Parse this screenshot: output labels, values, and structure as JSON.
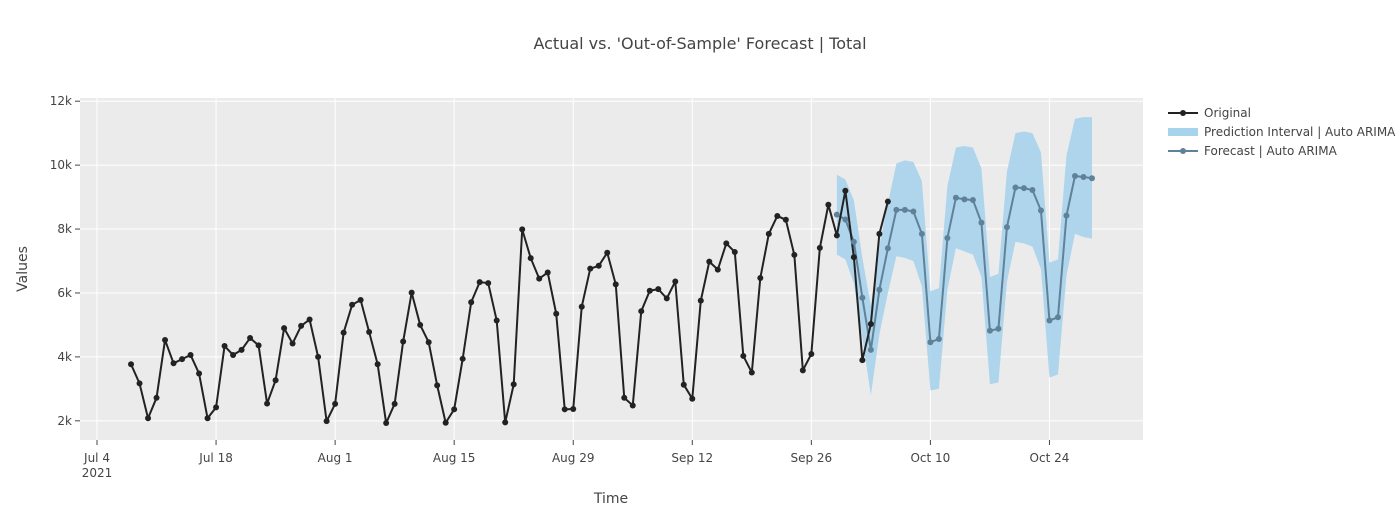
{
  "chart_data": {
    "type": "line",
    "title": "Actual vs. 'Out-of-Sample' Forecast | Total",
    "xlabel": "Time",
    "ylabel": "Values",
    "x_range": [
      "2021-07-02",
      "2021-11-04"
    ],
    "ylim": [
      1400,
      12100
    ],
    "x_ticks": [
      {
        "date": "2021-07-04",
        "label": "Jul 4",
        "sublabel": "2021"
      },
      {
        "date": "2021-07-18",
        "label": "Jul 18"
      },
      {
        "date": "2021-08-01",
        "label": "Aug 1"
      },
      {
        "date": "2021-08-15",
        "label": "Aug 15"
      },
      {
        "date": "2021-08-29",
        "label": "Aug 29"
      },
      {
        "date": "2021-09-12",
        "label": "Sep 12"
      },
      {
        "date": "2021-09-26",
        "label": "Sep 26"
      },
      {
        "date": "2021-10-10",
        "label": "Oct 10"
      },
      {
        "date": "2021-10-24",
        "label": "Oct 24"
      }
    ],
    "y_ticks": [
      {
        "value": 2000,
        "label": "2k"
      },
      {
        "value": 4000,
        "label": "4k"
      },
      {
        "value": 6000,
        "label": "6k"
      },
      {
        "value": 8000,
        "label": "8k"
      },
      {
        "value": 10000,
        "label": "10k"
      },
      {
        "value": 12000,
        "label": "12k"
      }
    ],
    "grid": true,
    "legend_position": "top-right",
    "colors": {
      "plot_bg": "#ebebeb",
      "grid": "#ffffff",
      "original": "#222222",
      "interval": "#a8d3ec",
      "forecast": "#5f8299"
    },
    "legend": [
      {
        "key": "original",
        "name": "Original"
      },
      {
        "key": "interval",
        "name": "Prediction Interval | Auto ARIMA"
      },
      {
        "key": "forecast",
        "name": "Forecast | Auto ARIMA"
      }
    ],
    "series": [
      {
        "key": "original",
        "name": "Original",
        "start": "2021-07-08",
        "values": [
          3770,
          3170,
          2080,
          2720,
          4530,
          3800,
          3930,
          4060,
          3480,
          2080,
          2420,
          4340,
          4060,
          4220,
          4590,
          4360,
          2540,
          3270,
          4900,
          4420,
          4970,
          5170,
          4000,
          1990,
          2530,
          4760,
          5630,
          5780,
          4780,
          3770,
          1930,
          2530,
          4480,
          6010,
          5000,
          4460,
          3110,
          1940,
          2360,
          3940,
          5710,
          6340,
          6310,
          5140,
          1950,
          3140,
          7990,
          7090,
          6450,
          6640,
          5350,
          2360,
          2370,
          5570,
          6760,
          6850,
          7260,
          6270,
          2720,
          2480,
          5430,
          6070,
          6120,
          5830,
          6360,
          3130,
          2690,
          5760,
          6980,
          6730,
          7550,
          7280,
          4030,
          3510,
          6470,
          7850,
          8410,
          8290,
          7190,
          3580,
          4090,
          7410,
          8760,
          7800,
          9200,
          7120,
          3900,
          5030,
          7850,
          8860
        ]
      },
      {
        "key": "forecast",
        "name": "Forecast | Auto ARIMA",
        "start": "2021-09-29",
        "values": [
          8450,
          8300,
          7600,
          5850,
          4220,
          6100,
          7400,
          8600,
          8600,
          8550,
          7850,
          4460,
          4560,
          7720,
          8980,
          8930,
          8910,
          8200,
          4820,
          4880,
          8060,
          9300,
          9280,
          9220,
          8580,
          5140,
          5240,
          8420,
          9660,
          9630,
          9590
        ]
      },
      {
        "key": "interval",
        "name": "Prediction Interval | Auto ARIMA",
        "start": "2021-09-29",
        "upper": [
          9700,
          9550,
          8900,
          7100,
          5600,
          7500,
          8800,
          10050,
          10150,
          10100,
          9500,
          6050,
          6150,
          9350,
          10550,
          10600,
          10550,
          9900,
          6500,
          6600,
          9800,
          11000,
          11050,
          11000,
          10400,
          6950,
          7050,
          10300,
          11450,
          11500,
          11500
        ],
        "lower": [
          7200,
          7050,
          6300,
          4600,
          2800,
          4700,
          6000,
          7150,
          7100,
          7000,
          6200,
          2950,
          3000,
          6100,
          7400,
          7300,
          7200,
          6500,
          3150,
          3200,
          6350,
          7600,
          7550,
          7450,
          6750,
          3350,
          3450,
          6550,
          7850,
          7750,
          7700
        ]
      }
    ]
  }
}
